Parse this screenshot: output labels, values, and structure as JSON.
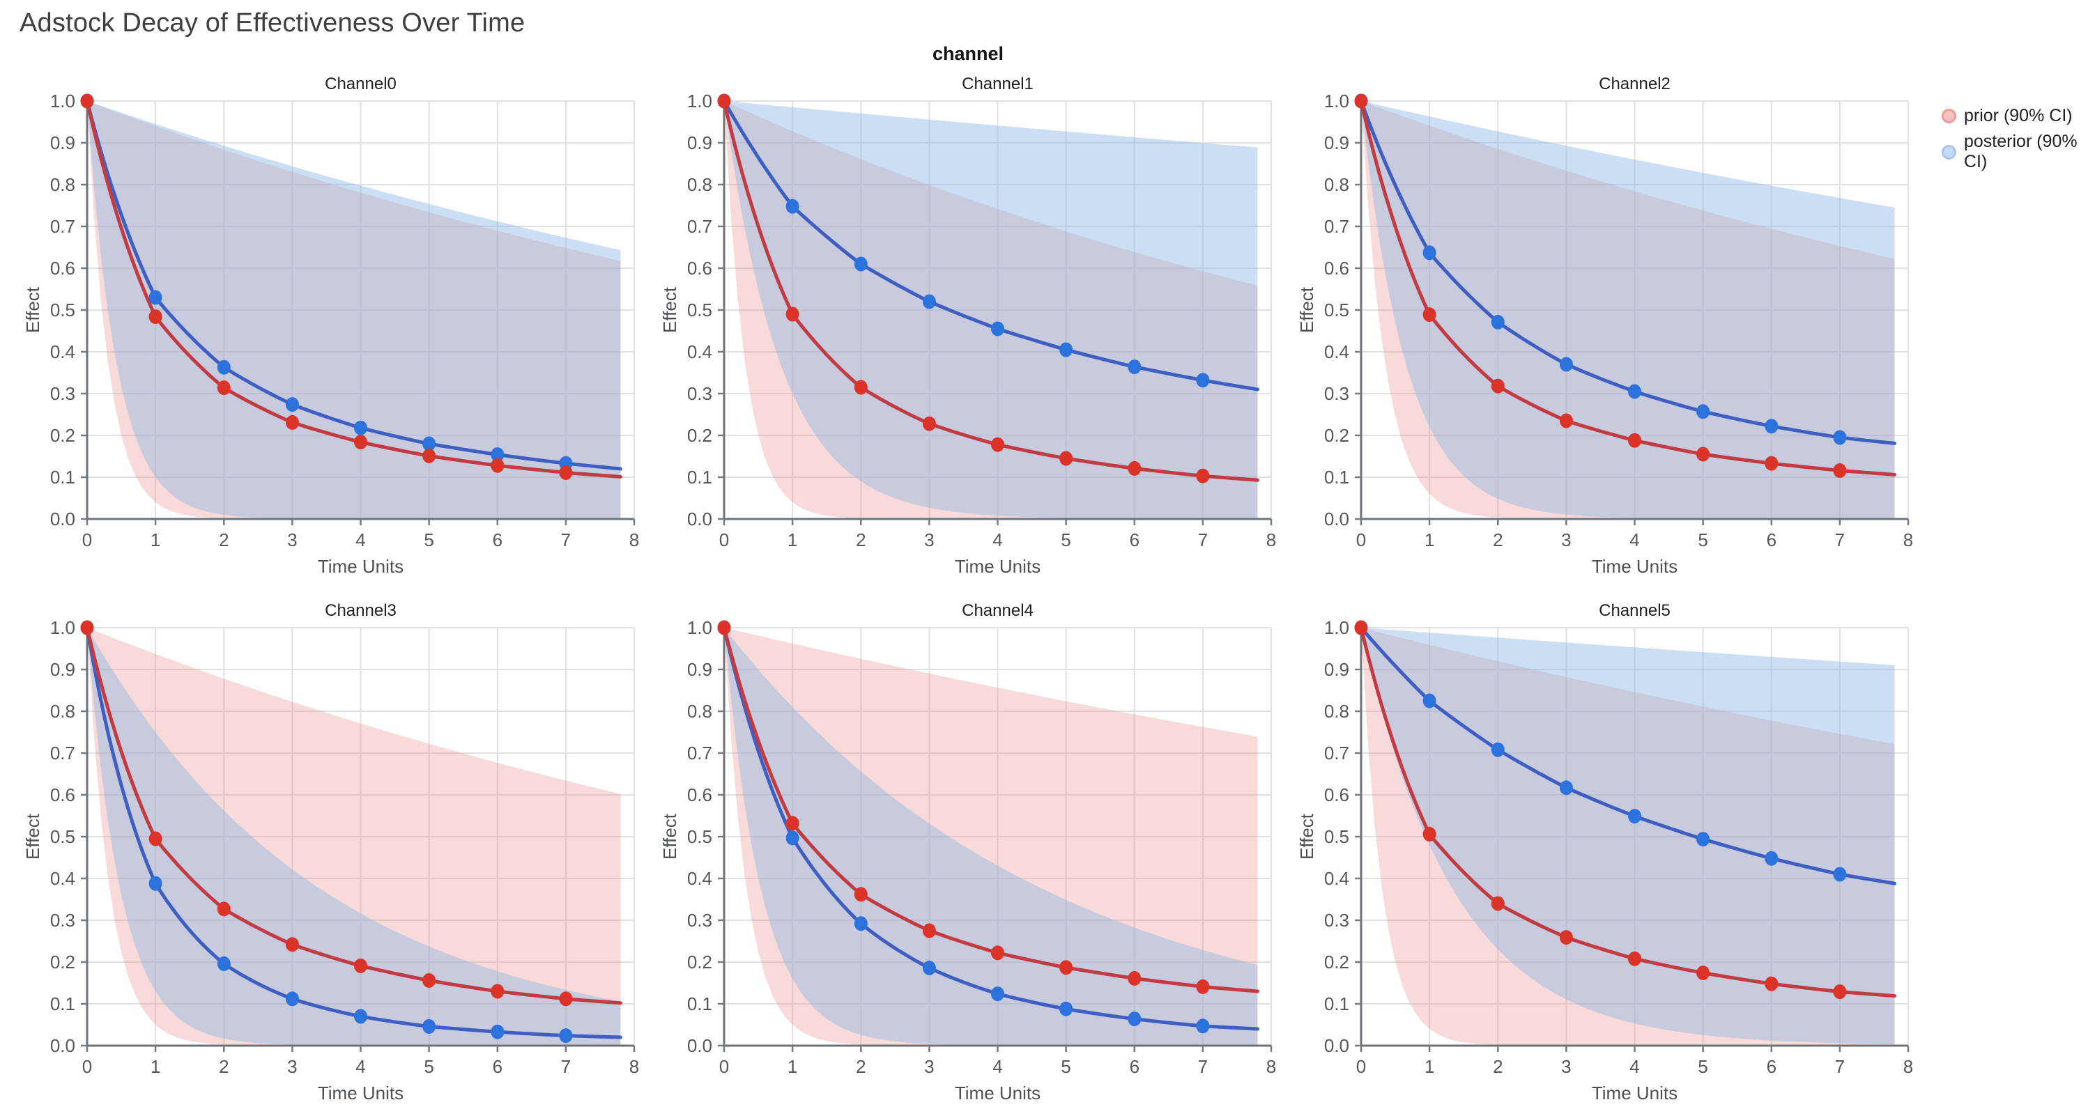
{
  "page": {
    "title": "Adstock Decay of Effectiveness Over Time"
  },
  "legend": {
    "prior_label": "prior (90% CI)",
    "posterior_label": "posterior (90% CI)"
  },
  "colors": {
    "prior_line": "#C23B43",
    "prior_marker": "#DB3327",
    "posterior_line": "#3E5FC1",
    "posterior_marker": "#2C72DC",
    "prior_fill": "rgba(230,142,141,0.33)",
    "posterior_fill": "rgba(141,181,229,0.45)",
    "grid": "#E0E1E4",
    "spine": "#6E7378",
    "tick": "#767B80",
    "tick_label": "#54585C",
    "axis_label": "#4B5054",
    "subplot_title": "#202124",
    "title": "#3C4043"
  },
  "chart_data": {
    "type": "line",
    "title": "Adstock Decay of Effectiveness Over Time",
    "facet_label": "channel",
    "xlabel": "Time Units",
    "ylabel": "Effect",
    "xlim": [
      0,
      8
    ],
    "ylim": [
      0.0,
      1.0
    ],
    "x_end": 7.8,
    "x_markers": [
      0,
      1,
      2,
      3,
      4,
      5,
      6,
      7
    ],
    "x_tick_labels": [
      "0",
      "1",
      "2",
      "3",
      "4",
      "5",
      "6",
      "7",
      "8"
    ],
    "y_tick_labels": [
      "0.0",
      "0.1",
      "0.2",
      "0.3",
      "0.4",
      "0.5",
      "0.6",
      "0.7",
      "0.8",
      "0.9",
      "1.0"
    ],
    "grid": "on",
    "legend_position": "top-right",
    "legend_entries": [
      "prior (90% CI)",
      "posterior (90% CI)"
    ],
    "channels": [
      {
        "name": "Channel0",
        "prior": {
          "values": [
            1.0,
            0.484,
            0.314,
            0.231,
            0.184,
            0.151,
            0.128,
            0.111
          ],
          "end_value": 0.101,
          "ci_upper_rate": 0.94,
          "ci_lower_rate": 0.04
        },
        "posterior": {
          "values": [
            1.0,
            0.53,
            0.363,
            0.274,
            0.218,
            0.18,
            0.154,
            0.133
          ],
          "end_value": 0.12,
          "ci_upper_rate": 0.945,
          "ci_lower_rate": 0.1
        }
      },
      {
        "name": "Channel1",
        "prior": {
          "values": [
            1.0,
            0.49,
            0.315,
            0.228,
            0.178,
            0.145,
            0.121,
            0.103
          ],
          "end_value": 0.093,
          "ci_upper_rate": 0.928,
          "ci_lower_rate": 0.04
        },
        "posterior": {
          "values": [
            1.0,
            0.748,
            0.61,
            0.52,
            0.455,
            0.405,
            0.364,
            0.332
          ],
          "end_value": 0.31,
          "ci_upper_rate": 0.985,
          "ci_lower_rate": 0.3
        }
      },
      {
        "name": "Channel2",
        "prior": {
          "values": [
            1.0,
            0.489,
            0.318,
            0.235,
            0.188,
            0.155,
            0.133,
            0.116
          ],
          "end_value": 0.106,
          "ci_upper_rate": 0.941,
          "ci_lower_rate": 0.06
        },
        "posterior": {
          "values": [
            1.0,
            0.637,
            0.471,
            0.37,
            0.305,
            0.257,
            0.222,
            0.195
          ],
          "end_value": 0.181,
          "ci_upper_rate": 0.963,
          "ci_lower_rate": 0.22
        }
      },
      {
        "name": "Channel3",
        "prior": {
          "values": [
            1.0,
            0.495,
            0.327,
            0.242,
            0.191,
            0.156,
            0.13,
            0.112
          ],
          "end_value": 0.102,
          "ci_upper_rate": 0.937,
          "ci_lower_rate": 0.05
        },
        "posterior": {
          "values": [
            1.0,
            0.388,
            0.196,
            0.112,
            0.07,
            0.046,
            0.033,
            0.024
          ],
          "end_value": 0.02,
          "ci_upper_rate": 0.75,
          "ci_lower_rate": 0.13
        }
      },
      {
        "name": "Channel4",
        "prior": {
          "values": [
            1.0,
            0.532,
            0.362,
            0.275,
            0.222,
            0.187,
            0.161,
            0.141
          ],
          "end_value": 0.13,
          "ci_upper_rate": 0.962,
          "ci_lower_rate": 0.05
        },
        "posterior": {
          "values": [
            1.0,
            0.497,
            0.292,
            0.186,
            0.124,
            0.088,
            0.064,
            0.047
          ],
          "end_value": 0.04,
          "ci_upper_rate": 0.81,
          "ci_lower_rate": 0.16
        }
      },
      {
        "name": "Channel5",
        "prior": {
          "values": [
            1.0,
            0.506,
            0.34,
            0.259,
            0.208,
            0.174,
            0.148,
            0.129
          ],
          "end_value": 0.119,
          "ci_upper_rate": 0.959,
          "ci_lower_rate": 0.04
        },
        "posterior": {
          "values": [
            1.0,
            0.825,
            0.708,
            0.617,
            0.549,
            0.494,
            0.448,
            0.41
          ],
          "end_value": 0.388,
          "ci_upper_rate": 0.988,
          "ci_lower_rate": 0.48
        }
      }
    ]
  }
}
